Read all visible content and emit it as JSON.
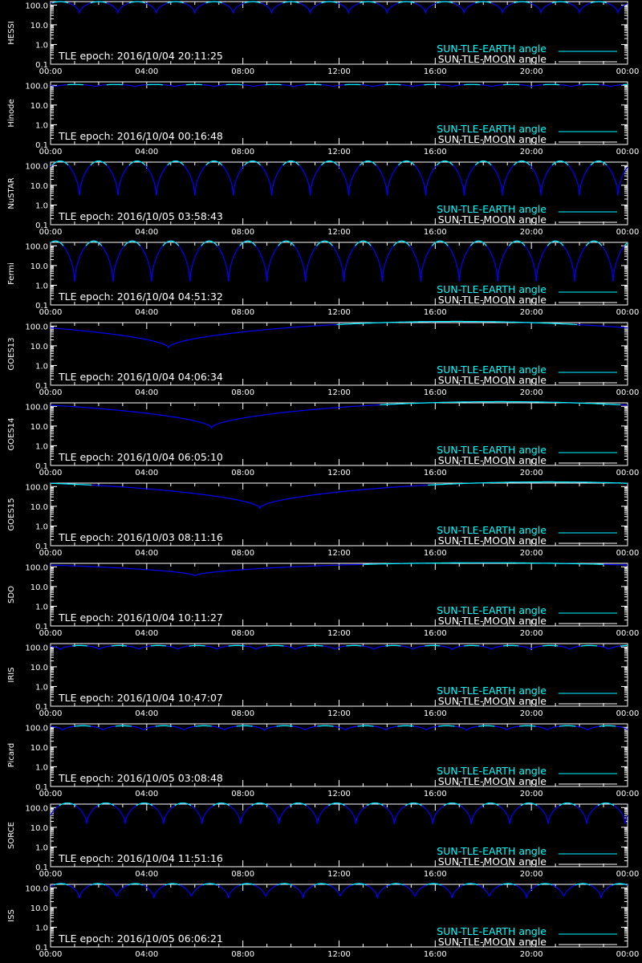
{
  "colors": {
    "background": "#000000",
    "axes": "#ffffff",
    "earth_series": "#00ffff",
    "moon_series": "#ffffff",
    "curve_dip": "#0000ff"
  },
  "chart_data": [
    {
      "type": "line",
      "panel_label": "HESSI",
      "epoch_text": "TLE epoch: 2016/10/04 20:11:25",
      "yscale": "log",
      "ylim": [
        0.1,
        150
      ],
      "ytick_labels": [
        "0.1",
        "1.0",
        "10.0",
        "100.0"
      ],
      "xlim_hours": [
        0,
        24
      ],
      "xtick_labels": [
        "00:00",
        "04:00",
        "08:00",
        "12:00",
        "16:00",
        "20:00",
        "00:00"
      ],
      "legend": {
        "placement": "bottom-right",
        "entries": [
          "SUN-TLE-EARTH angle",
          "SUN-TLE-MOON angle"
        ]
      },
      "curve": {
        "period_hours": 1.6,
        "phase_hours": 1.2,
        "max_deg": 150,
        "min_deg": 40
      }
    },
    {
      "type": "line",
      "panel_label": "Hinode",
      "epoch_text": "TLE epoch: 2016/10/04 00:16:48",
      "yscale": "log",
      "ylim": [
        0.1,
        150
      ],
      "ytick_labels": [
        "0.1",
        "1.0",
        "10.0",
        "100.0"
      ],
      "xlim_hours": [
        0,
        24
      ],
      "xtick_labels": [
        "00:00",
        "04:00",
        "08:00",
        "12:00",
        "16:00",
        "20:00",
        "00:00"
      ],
      "legend": {
        "placement": "bottom-right",
        "entries": [
          "SUN-TLE-EARTH angle",
          "SUN-TLE-MOON angle"
        ]
      },
      "curve": {
        "period_hours": 1.65,
        "phase_hours": 0.2,
        "max_deg": 110,
        "min_deg": 85
      }
    },
    {
      "type": "line",
      "panel_label": "NuSTAR",
      "epoch_text": "TLE epoch: 2016/10/05 03:58:43",
      "yscale": "log",
      "ylim": [
        0.1,
        150
      ],
      "ytick_labels": [
        "0.1",
        "1.0",
        "10.0",
        "100.0"
      ],
      "xlim_hours": [
        0,
        24
      ],
      "xtick_labels": [
        "00:00",
        "04:00",
        "08:00",
        "12:00",
        "16:00",
        "20:00",
        "00:00"
      ],
      "legend": {
        "placement": "bottom-right",
        "entries": [
          "SUN-TLE-EARTH angle",
          "SUN-TLE-MOON angle"
        ]
      },
      "curve": {
        "period_hours": 1.6,
        "phase_hours": 1.2,
        "max_deg": 170,
        "min_deg": 3
      }
    },
    {
      "type": "line",
      "panel_label": "Fermi",
      "epoch_text": "TLE epoch: 2016/10/04 04:51:32",
      "yscale": "log",
      "ylim": [
        0.1,
        150
      ],
      "ytick_labels": [
        "0.1",
        "1.0",
        "10.0",
        "100.0"
      ],
      "xlim_hours": [
        0,
        24
      ],
      "xtick_labels": [
        "00:00",
        "04:00",
        "08:00",
        "12:00",
        "16:00",
        "20:00",
        "00:00"
      ],
      "legend": {
        "placement": "bottom-right",
        "entries": [
          "SUN-TLE-EARTH angle",
          "SUN-TLE-MOON angle"
        ]
      },
      "curve": {
        "period_hours": 1.6,
        "phase_hours": 1.0,
        "max_deg": 175,
        "min_deg": 1.5
      }
    },
    {
      "type": "line",
      "panel_label": "GOES13",
      "epoch_text": "TLE epoch: 2016/10/04 04:06:34",
      "yscale": "log",
      "ylim": [
        0.1,
        150
      ],
      "ytick_labels": [
        "0.1",
        "1.0",
        "10.0",
        "100.0"
      ],
      "xlim_hours": [
        0,
        24
      ],
      "xtick_labels": [
        "00:00",
        "04:00",
        "08:00",
        "12:00",
        "16:00",
        "20:00",
        "00:00"
      ],
      "legend": {
        "placement": "bottom-right",
        "entries": [
          "SUN-TLE-EARTH angle",
          "SUN-TLE-MOON angle"
        ]
      },
      "curve": {
        "period_hours": 24,
        "phase_hours": 4.9,
        "max_deg": 172,
        "min_deg": 8
      }
    },
    {
      "type": "line",
      "panel_label": "GOES14",
      "epoch_text": "TLE epoch: 2016/10/04 06:05:10",
      "yscale": "log",
      "ylim": [
        0.1,
        150
      ],
      "ytick_labels": [
        "0.1",
        "1.0",
        "10.0",
        "100.0"
      ],
      "xlim_hours": [
        0,
        24
      ],
      "xtick_labels": [
        "00:00",
        "04:00",
        "08:00",
        "12:00",
        "16:00",
        "20:00",
        "00:00"
      ],
      "legend": {
        "placement": "bottom-right",
        "entries": [
          "SUN-TLE-EARTH angle",
          "SUN-TLE-MOON angle"
        ]
      },
      "curve": {
        "period_hours": 24,
        "phase_hours": 6.7,
        "max_deg": 172,
        "min_deg": 8
      }
    },
    {
      "type": "line",
      "panel_label": "GOES15",
      "epoch_text": "TLE epoch: 2016/10/03 08:11:16",
      "yscale": "log",
      "ylim": [
        0.1,
        150
      ],
      "ytick_labels": [
        "0.1",
        "1.0",
        "10.0",
        "100.0"
      ],
      "xlim_hours": [
        0,
        24
      ],
      "xtick_labels": [
        "00:00",
        "04:00",
        "08:00",
        "12:00",
        "16:00",
        "20:00",
        "00:00"
      ],
      "legend": {
        "placement": "bottom-right",
        "entries": [
          "SUN-TLE-EARTH angle",
          "SUN-TLE-MOON angle"
        ]
      },
      "curve": {
        "period_hours": 24,
        "phase_hours": 8.7,
        "max_deg": 172,
        "min_deg": 8
      }
    },
    {
      "type": "line",
      "panel_label": "SDO",
      "epoch_text": "TLE epoch: 2016/10/04 10:11:27",
      "yscale": "log",
      "ylim": [
        0.1,
        150
      ],
      "ytick_labels": [
        "0.1",
        "1.0",
        "10.0",
        "100.0"
      ],
      "xlim_hours": [
        0,
        24
      ],
      "xtick_labels": [
        "00:00",
        "04:00",
        "08:00",
        "12:00",
        "16:00",
        "20:00",
        "00:00"
      ],
      "legend": {
        "placement": "bottom-right",
        "entries": [
          "SUN-TLE-EARTH angle",
          "SUN-TLE-MOON angle"
        ]
      },
      "curve": {
        "period_hours": 24,
        "phase_hours": 6.0,
        "max_deg": 160,
        "min_deg": 35
      }
    },
    {
      "type": "line",
      "panel_label": "IRIS",
      "epoch_text": "TLE epoch: 2016/10/04 10:47:07",
      "yscale": "log",
      "ylim": [
        0.1,
        150
      ],
      "ytick_labels": [
        "0.1",
        "1.0",
        "10.0",
        "100.0"
      ],
      "xlim_hours": [
        0,
        24
      ],
      "xtick_labels": [
        "00:00",
        "04:00",
        "08:00",
        "12:00",
        "16:00",
        "20:00",
        "00:00"
      ],
      "legend": {
        "placement": "bottom-right",
        "entries": [
          "SUN-TLE-EARTH angle",
          "SUN-TLE-MOON angle"
        ]
      },
      "curve": {
        "period_hours": 1.63,
        "phase_hours": 0.4,
        "max_deg": 120,
        "min_deg": 75
      }
    },
    {
      "type": "line",
      "panel_label": "Picard",
      "epoch_text": "TLE epoch: 2016/10/05 03:08:48",
      "yscale": "log",
      "ylim": [
        0.1,
        150
      ],
      "ytick_labels": [
        "0.1",
        "1.0",
        "10.0",
        "100.0"
      ],
      "xlim_hours": [
        0,
        24
      ],
      "xtick_labels": [
        "00:00",
        "04:00",
        "08:00",
        "12:00",
        "16:00",
        "20:00",
        "00:00"
      ],
      "legend": {
        "placement": "bottom-right",
        "entries": [
          "SUN-TLE-EARTH angle",
          "SUN-TLE-MOON angle"
        ]
      },
      "curve": {
        "period_hours": 1.68,
        "phase_hours": 0.5,
        "max_deg": 120,
        "min_deg": 70
      }
    },
    {
      "type": "line",
      "panel_label": "SORCE",
      "epoch_text": "TLE epoch: 2016/10/04 11:51:16",
      "yscale": "log",
      "ylim": [
        0.1,
        150
      ],
      "ytick_labels": [
        "0.1",
        "1.0",
        "10.0",
        "100.0"
      ],
      "xlim_hours": [
        0,
        24
      ],
      "xtick_labels": [
        "00:00",
        "04:00",
        "08:00",
        "12:00",
        "16:00",
        "20:00",
        "00:00"
      ],
      "legend": {
        "placement": "bottom-right",
        "entries": [
          "SUN-TLE-EARTH angle",
          "SUN-TLE-MOON angle"
        ]
      },
      "curve": {
        "period_hours": 1.6,
        "phase_hours": 1.5,
        "max_deg": 170,
        "min_deg": 15
      }
    },
    {
      "type": "line",
      "panel_label": "ISS",
      "epoch_text": "TLE epoch: 2016/10/05 06:06:21",
      "yscale": "log",
      "ylim": [
        0.1,
        150
      ],
      "ytick_labels": [
        "0.1",
        "1.0",
        "10.0",
        "100.0"
      ],
      "xlim_hours": [
        0,
        24
      ],
      "xtick_labels": [
        "00:00",
        "04:00",
        "08:00",
        "12:00",
        "16:00",
        "20:00",
        "00:00"
      ],
      "legend": {
        "placement": "bottom-right",
        "entries": [
          "SUN-TLE-EARTH angle",
          "SUN-TLE-MOON angle"
        ]
      },
      "curve": {
        "period_hours": 1.55,
        "phase_hours": 1.2,
        "max_deg": 165,
        "min_deg": 30
      }
    }
  ]
}
